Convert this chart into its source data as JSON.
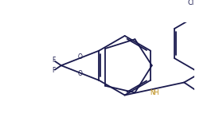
{
  "line_color": "#1a1a4e",
  "background_color": "#ffffff",
  "lw": 1.3,
  "figsize": [
    2.75,
    1.67
  ],
  "dpi": 100,
  "xlim": [
    0.0,
    10.0
  ],
  "ylim": [
    0.0,
    6.5
  ]
}
